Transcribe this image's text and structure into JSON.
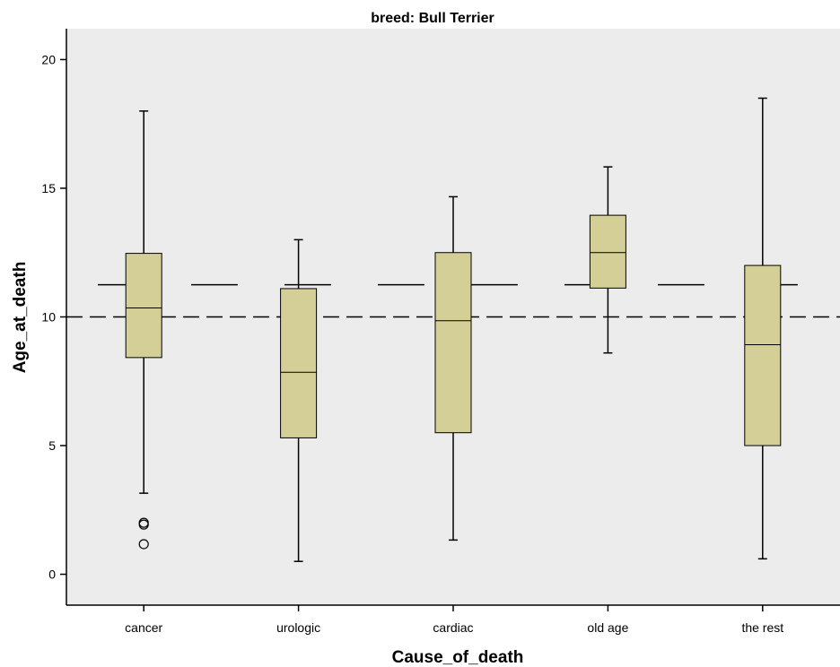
{
  "chart_data": {
    "type": "boxplot",
    "title": "breed: Bull Terrier",
    "xlabel": "Cause_of_death",
    "ylabel": "Age_at_death",
    "ylim": [
      -1.2,
      21.2
    ],
    "yticks": [
      0,
      5,
      10,
      15,
      20
    ],
    "categories": [
      "cancer",
      "urologic",
      "cardiac",
      "old age",
      "the rest"
    ],
    "boxes": [
      {
        "category": "cancer",
        "whisker_low": 3.15,
        "q1": 8.42,
        "median": 10.35,
        "q3": 12.47,
        "whisker_high": 18.0,
        "outliers": [
          2.0,
          1.93,
          1.17
        ]
      },
      {
        "category": "urologic",
        "whisker_low": 0.5,
        "q1": 5.3,
        "median": 7.85,
        "q3": 11.1,
        "whisker_high": 13.0,
        "outliers": []
      },
      {
        "category": "cardiac",
        "whisker_low": 1.33,
        "q1": 5.5,
        "median": 9.85,
        "q3": 12.5,
        "whisker_high": 14.67,
        "outliers": []
      },
      {
        "category": "old age",
        "whisker_low": 8.6,
        "q1": 11.12,
        "median": 12.5,
        "q3": 13.95,
        "whisker_high": 15.83,
        "outliers": []
      },
      {
        "category": "the rest",
        "whisker_low": 0.6,
        "q1": 5.0,
        "median": 8.92,
        "q3": 12.0,
        "whisker_high": 18.5,
        "outliers": []
      }
    ],
    "reference_lines": [
      {
        "value": 11.25,
        "style": "long-dash"
      },
      {
        "value": 10.0,
        "style": "dashed"
      }
    ],
    "colors": {
      "plot_background": "#ececec",
      "box_fill": "#d3cf96",
      "stroke": "#000000"
    },
    "grid": false
  }
}
